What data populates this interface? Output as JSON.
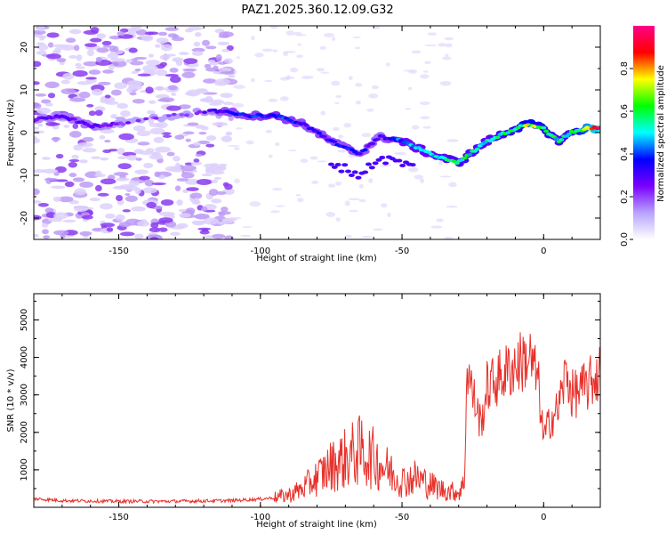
{
  "title": "PAZ1.2025.360.12.09.G32",
  "colors": {
    "line": "#e8302a",
    "frame": "#000000"
  },
  "chart_data": [
    {
      "type": "heatmap",
      "title": "PAZ1.2025.360.12.09.G32",
      "xlabel": "Height of straight line (km)",
      "ylabel": "Frequency (Hz)",
      "xlim": [
        -180,
        20
      ],
      "ylim": [
        -25,
        25
      ],
      "xticks": [
        -150,
        -100,
        -50,
        0
      ],
      "yticks": [
        -20,
        -10,
        0,
        10,
        20
      ],
      "colorbar": {
        "label": "Normalized spectral amplitude",
        "range": [
          0,
          1
        ],
        "ticks": [
          "0.0",
          "0.2",
          "0.4",
          "0.6",
          "0.8"
        ],
        "colors": [
          "#ffffff",
          "#b8a2ff",
          "#7a00ff",
          "#0000ff",
          "#00ffff",
          "#00ff00",
          "#ffff00",
          "#ff0000",
          "#ff0088"
        ]
      },
      "ridge": {
        "x": [
          -180,
          -170,
          -160,
          -150,
          -140,
          -130,
          -120,
          -112,
          -105,
          -95,
          -85,
          -75,
          -65,
          -58,
          -50,
          -40,
          -30,
          -20,
          -10,
          -5,
          0,
          5,
          10,
          15,
          20
        ],
        "y": [
          3,
          4,
          1.5,
          2,
          3,
          4,
          5,
          5,
          4,
          4,
          2,
          -2,
          -5,
          -1,
          -2,
          -5,
          -7,
          -2,
          1,
          2,
          1,
          -2,
          0,
          1,
          1
        ],
        "amplitude": [
          0.25,
          0.28,
          0.3,
          0.22,
          0.22,
          0.22,
          0.25,
          0.35,
          0.35,
          0.4,
          0.35,
          0.35,
          0.35,
          0.3,
          0.45,
          0.5,
          0.55,
          0.5,
          0.6,
          0.7,
          0.6,
          0.55,
          0.55,
          0.8,
          0.9
        ]
      }
    },
    {
      "type": "line",
      "xlabel": "Height of straight line (km)",
      "ylabel": "SNR (10 * v/v)",
      "xlim": [
        -180,
        20
      ],
      "ylim": [
        0,
        5700
      ],
      "xticks": [
        -150,
        -100,
        -50,
        0
      ],
      "yticks": [
        1000,
        2000,
        3000,
        4000,
        5000
      ],
      "series": [
        {
          "name": "SNR",
          "x": [
            -180,
            -170,
            -160,
            -150,
            -140,
            -130,
            -120,
            -110,
            -100,
            -95,
            -90,
            -85,
            -80,
            -75,
            -70,
            -65,
            -60,
            -55,
            -50,
            -45,
            -40,
            -35,
            -30,
            -28,
            -27,
            -25,
            -22,
            -20,
            -15,
            -10,
            -5,
            -2,
            0,
            2,
            5,
            8,
            10,
            15,
            20
          ],
          "y": [
            230,
            180,
            170,
            160,
            160,
            160,
            170,
            180,
            220,
            260,
            330,
            500,
            800,
            1100,
            1300,
            1500,
            1300,
            1000,
            700,
            800,
            600,
            450,
            400,
            600,
            3800,
            3000,
            2200,
            3200,
            3500,
            3800,
            4000,
            3400,
            1800,
            2300,
            2600,
            3600,
            3000,
            3200,
            3600
          ]
        }
      ]
    }
  ]
}
